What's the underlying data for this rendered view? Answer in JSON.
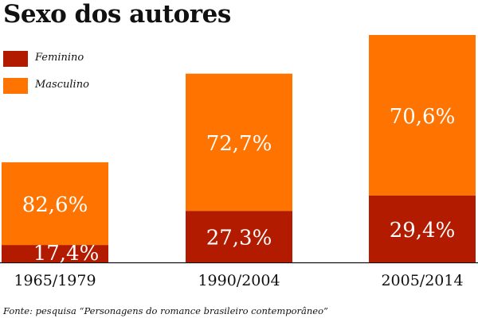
{
  "title": "Sexo dos autores",
  "source": "Fonte: pesquisa “Personagens do romance brasileiro contemporâneo”",
  "colors": {
    "Feminino": "#b31b00",
    "Masculino": "#ff7300",
    "text": "#111111"
  },
  "legend": [
    {
      "name": "Feminino",
      "color": "#b31b00"
    },
    {
      "name": "Masculino",
      "color": "#ff7300"
    }
  ],
  "chart_data": {
    "type": "bar",
    "stacked": true,
    "title": "Sexo dos autores",
    "categories": [
      "1965/1979",
      "1990/2004",
      "2005/2014"
    ],
    "series": [
      {
        "name": "Feminino",
        "values": [
          17.4,
          27.3,
          29.4
        ],
        "labels": [
          "17,4%",
          "27,3%",
          "29,4%"
        ],
        "color": "#b31b00"
      },
      {
        "name": "Masculino",
        "values": [
          82.6,
          72.7,
          70.6
        ],
        "labels": [
          "82,6%",
          "72,7%",
          "70,6%"
        ],
        "color": "#ff7300"
      }
    ],
    "bar_totals_relative": [
      0.44,
      0.83,
      1.0
    ],
    "grid": false,
    "y_axis_visible": false,
    "legend_position": "top-left"
  }
}
